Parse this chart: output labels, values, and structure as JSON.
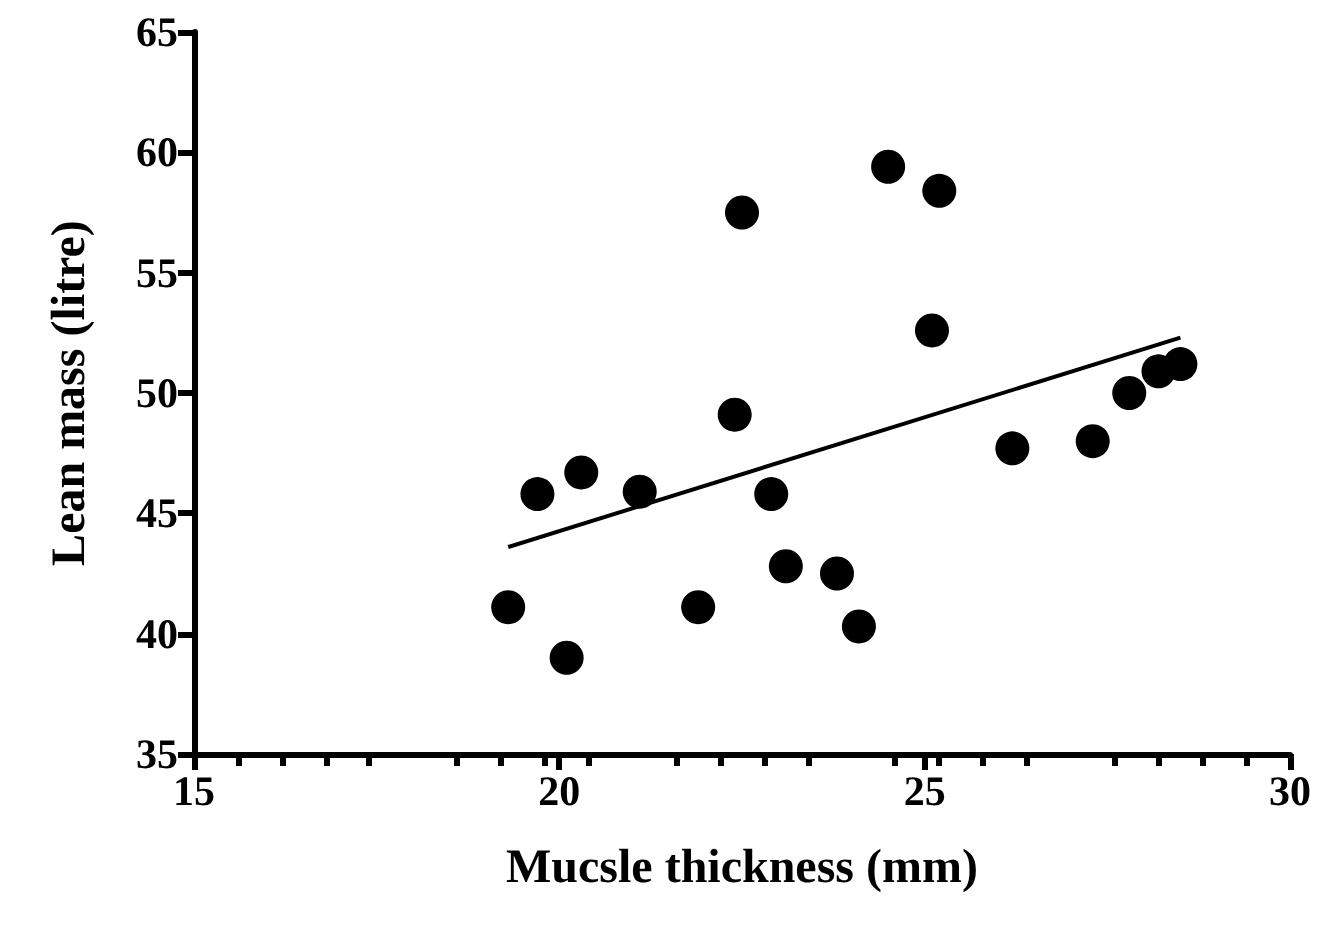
{
  "chart_data": {
    "type": "scatter",
    "xlabel": "Mucsle thickness (mm)",
    "ylabel": "Lean mass (litre)",
    "xlim": [
      15,
      30
    ],
    "xticks": [
      15,
      20,
      25,
      30
    ],
    "ylim": [
      35,
      65
    ],
    "yticks": [
      35,
      40,
      45,
      50,
      55,
      60,
      65
    ],
    "grid": false,
    "marker": "circle",
    "series": [
      {
        "color": "#000000",
        "x": [
          19.3,
          19.7,
          20.1,
          20.3,
          21.1,
          21.9,
          22.4,
          22.5,
          22.9,
          23.1,
          23.8,
          24.1,
          24.5,
          25.1,
          25.2,
          26.2,
          27.3,
          27.8,
          28.2,
          28.5
        ],
        "values": [
          41.1,
          45.8,
          39.0,
          46.7,
          45.9,
          41.1,
          49.1,
          57.5,
          45.8,
          42.8,
          42.5,
          40.3,
          59.4,
          52.6,
          58.4,
          47.7,
          48.0,
          50.0,
          50.9,
          51.2
        ]
      },
      {
        "type": "line",
        "marker": "none",
        "color": "#000000",
        "x": [
          19.3,
          28.5
        ],
        "values": [
          43.6,
          52.3
        ]
      }
    ]
  }
}
